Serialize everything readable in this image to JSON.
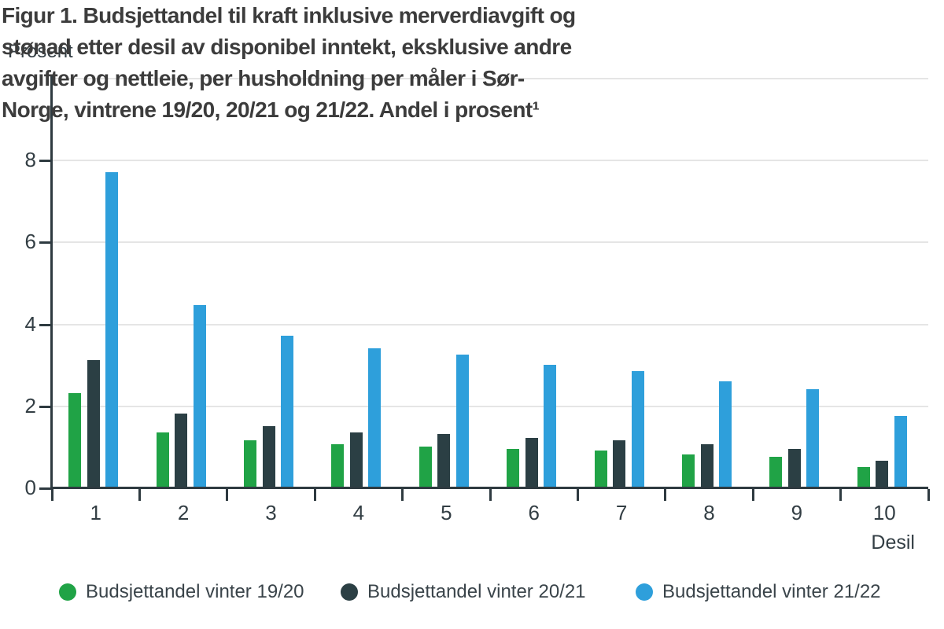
{
  "figure": {
    "title_lines": [
      "Figur 1. Budsjettandel til kraft inklusive merverdiavgift og",
      "stønad etter desil av disponibel inntekt, eksklusive andre",
      "avgifter og nettleie, per husholdning per måler i Sør-",
      "Norge, vintrene 19/20, 20/21 og 21/22. Andel i prosent¹"
    ],
    "y_axis_label": "Prosent",
    "x_axis_label": "Desil"
  },
  "chart_data": {
    "type": "bar",
    "title": "Figur 1. Budsjettandel til kraft inklusive merverdiavgift og stønad etter desil av disponibel inntekt, eksklusive andre avgifter og nettleie, per husholdning per måler i Sør-Norge, vintrene 19/20, 20/21 og 21/22. Andel i prosent¹",
    "xlabel": "Desil",
    "ylabel": "Prosent",
    "categories": [
      "1",
      "2",
      "3",
      "4",
      "5",
      "6",
      "7",
      "8",
      "9",
      "10"
    ],
    "series": [
      {
        "name": "Budsjettandel vinter 19/20",
        "color": "#20A346",
        "values": [
          2.3,
          1.35,
          1.15,
          1.05,
          1.0,
          0.95,
          0.9,
          0.8,
          0.75,
          0.5
        ]
      },
      {
        "name": "Budsjettandel vinter 20/21",
        "color": "#2B3F44",
        "values": [
          3.1,
          1.8,
          1.5,
          1.35,
          1.3,
          1.2,
          1.15,
          1.05,
          0.95,
          0.65
        ]
      },
      {
        "name": "Budsjettandel vinter 21/22",
        "color": "#2E9FDB",
        "values": [
          7.7,
          4.45,
          3.7,
          3.4,
          3.25,
          3.0,
          2.85,
          2.6,
          2.4,
          1.75
        ]
      }
    ],
    "ylim": [
      0,
      10
    ],
    "ytick_labels": [
      "0",
      "2",
      "4",
      "6",
      "8"
    ],
    "gridline_values": [
      2,
      4,
      6,
      8,
      10
    ],
    "grid": true,
    "legend_position": "bottom"
  },
  "colors": {
    "axis": "#2e3a40",
    "grid": "#e5e5e5",
    "title_text": "#3c3c3c",
    "tick_text": "#333e44",
    "legend_text": "#3a444a"
  }
}
